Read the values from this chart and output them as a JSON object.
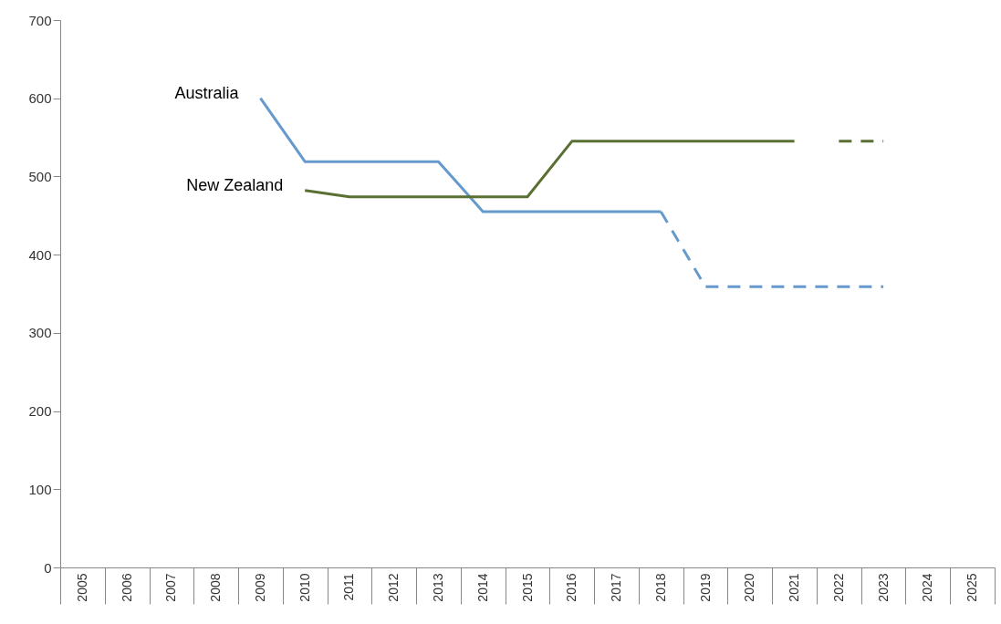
{
  "chart_data": {
    "type": "line",
    "categories": [
      "2005",
      "2006",
      "2007",
      "2008",
      "2009",
      "2010",
      "2011",
      "2012",
      "2013",
      "2014",
      "2015",
      "2016",
      "2017",
      "2018",
      "2019",
      "2020",
      "2021",
      "2022",
      "2023",
      "2024",
      "2025"
    ],
    "series": [
      {
        "name": "Australia",
        "color": "#6699cc",
        "line_style": "solid",
        "values": [
          null,
          null,
          null,
          null,
          600,
          519,
          519,
          519,
          519,
          455,
          455,
          455,
          455,
          455,
          null,
          null,
          null,
          null,
          null,
          null,
          null
        ]
      },
      {
        "color": "#6699cc",
        "line_style": "dashed",
        "values": [
          null,
          null,
          null,
          null,
          null,
          null,
          null,
          null,
          null,
          null,
          null,
          null,
          null,
          455,
          359,
          359,
          359,
          359,
          359,
          null,
          null
        ]
      },
      {
        "name": "New Zealand",
        "color": "#5a7032",
        "line_style": "solid",
        "values": [
          null,
          null,
          null,
          null,
          null,
          482,
          474,
          474,
          474,
          474,
          474,
          545,
          545,
          545,
          545,
          545,
          545,
          null,
          null,
          null,
          null
        ]
      },
      {
        "color": "#5a7032",
        "line_style": "dashed",
        "values": [
          null,
          null,
          null,
          null,
          null,
          null,
          null,
          null,
          null,
          null,
          null,
          null,
          null,
          null,
          null,
          null,
          null,
          545,
          545,
          null,
          null
        ]
      }
    ],
    "ylim": [
      0,
      700
    ],
    "yticks": [
      0,
      100,
      200,
      300,
      400,
      500,
      600,
      700
    ],
    "grid": false,
    "marker": "none"
  }
}
